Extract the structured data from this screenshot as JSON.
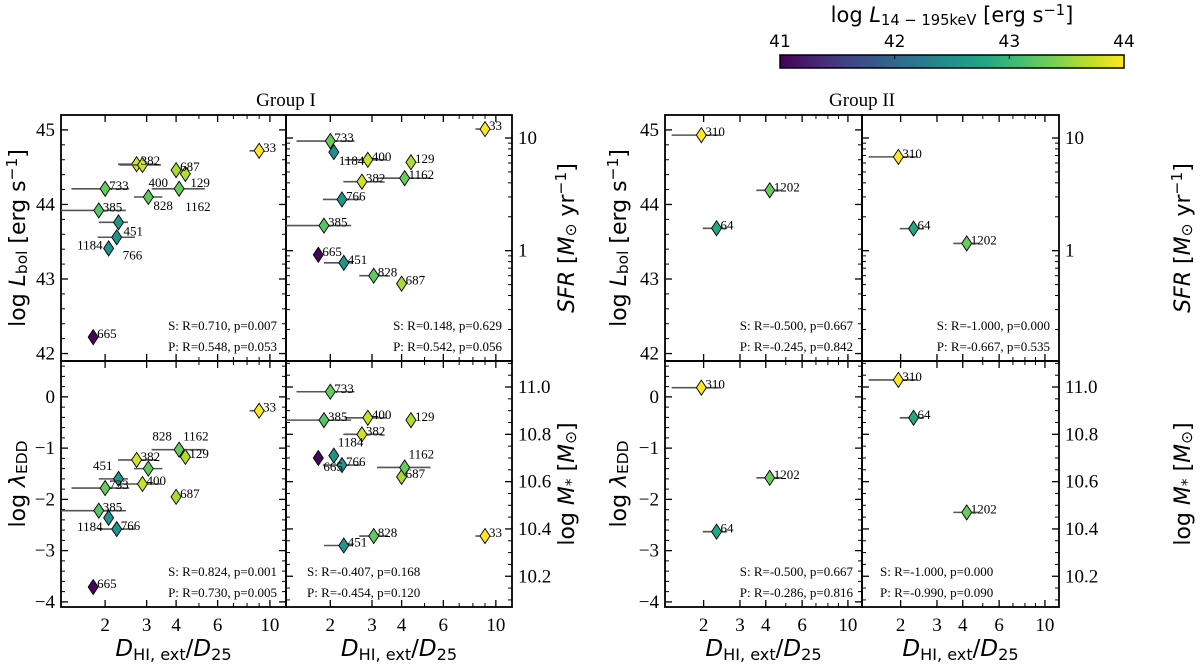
{
  "chart_data": {
    "type": "scatter",
    "marker": "diamond",
    "x_axis": {
      "scale": "log",
      "lim": [
        1.3,
        11.7
      ],
      "ticks": [
        2,
        3,
        4,
        6,
        10
      ],
      "tick_labels": [
        "2",
        "3",
        "4",
        "6",
        "10"
      ],
      "label_parts": [
        {
          "t": "D",
          "s": "it"
        },
        {
          "t": "HI, ext",
          "s": "sub"
        },
        {
          "t": "/",
          "s": ""
        },
        {
          "t": "D",
          "s": "it"
        },
        {
          "t": "25",
          "s": "sub"
        }
      ]
    },
    "y_axes": {
      "lbol": {
        "scale": "linear",
        "lim": [
          41.9,
          45.2
        ],
        "ticks": [
          42,
          43,
          44,
          45
        ],
        "tick_labels": [
          "42",
          "43",
          "44",
          "45"
        ],
        "minor_step": 0.2,
        "label_parts": [
          {
            "t": "log ",
            "s": ""
          },
          {
            "t": "L",
            "s": "it"
          },
          {
            "t": "bol",
            "s": "sub"
          },
          {
            "t": " [erg s",
            "s": ""
          },
          {
            "t": "−1",
            "s": "sup"
          },
          {
            "t": "]",
            "s": ""
          }
        ]
      },
      "sfr": {
        "scale": "log",
        "lim": [
          0.105,
          16
        ],
        "ticks": [
          1,
          10
        ],
        "tick_labels": [
          "1",
          "10"
        ],
        "label_parts": [
          {
            "t": "SFR",
            "s": "it"
          },
          {
            "t": " [",
            "s": ""
          },
          {
            "t": "M",
            "s": "it"
          },
          {
            "t": "⊙",
            "s": "sub"
          },
          {
            "t": " yr",
            "s": ""
          },
          {
            "t": "−1",
            "s": "sup"
          },
          {
            "t": "]",
            "s": ""
          }
        ]
      },
      "lambda": {
        "scale": "linear",
        "lim": [
          -4.1,
          0.7
        ],
        "ticks": [
          0,
          -1,
          -2,
          -3,
          -4
        ],
        "tick_labels": [
          "0",
          "−1",
          "−2",
          "−3",
          "−4"
        ],
        "minor_step": 0.2,
        "label_parts": [
          {
            "t": "log ",
            "s": ""
          },
          {
            "t": "λ",
            "s": "it"
          },
          {
            "t": "EDD",
            "s": "sub"
          }
        ]
      },
      "mstar": {
        "scale": "linear",
        "lim": [
          10.07,
          11.11
        ],
        "ticks": [
          10.2,
          10.4,
          10.6,
          10.8,
          11.0
        ],
        "tick_labels": [
          "10.2",
          "10.4",
          "10.6",
          "10.8",
          "11.0"
        ],
        "minor_step": 0.05,
        "label_parts": [
          {
            "t": "log ",
            "s": ""
          },
          {
            "t": "M",
            "s": "it"
          },
          {
            "t": "*",
            "s": "sub"
          },
          {
            "t": " [",
            "s": ""
          },
          {
            "t": "M",
            "s": "it"
          },
          {
            "t": "⊙",
            "s": "sub"
          },
          {
            "t": "]",
            "s": ""
          }
        ]
      }
    },
    "colorbar": {
      "colormap": "viridis",
      "range": [
        41,
        44
      ],
      "ticks": [
        41,
        42,
        43,
        44
      ],
      "tick_labels": [
        "41",
        "42",
        "43",
        "44"
      ],
      "label_parts": [
        {
          "t": "log ",
          "s": ""
        },
        {
          "t": "L",
          "s": "it"
        },
        {
          "t": "14 − 195keV",
          "s": "sub"
        },
        {
          "t": " [erg s",
          "s": ""
        },
        {
          "t": "−1",
          "s": "sup"
        },
        {
          "t": "]",
          "s": ""
        }
      ],
      "stops": [
        "#440154",
        "#482475",
        "#414487",
        "#355f8d",
        "#2a788e",
        "#21918c",
        "#22a884",
        "#44bf70",
        "#7ad151",
        "#bddf26",
        "#fde725"
      ]
    },
    "groups": [
      {
        "title": "Group I",
        "galaxies": [
          {
            "id": "33",
            "x": 9.0,
            "xerr": [
              8.2,
              9.3
            ],
            "logL14_195": 44.0,
            "lbol": 44.72,
            "sfr": 12.0,
            "lambda": -0.27,
            "mstar": 10.37
          },
          {
            "id": "382",
            "x": 2.72,
            "xerr": [
              2.27,
              3.32
            ],
            "logL14_195": 43.8,
            "lbol": 44.54,
            "sfr": 4.1,
            "lambda": -1.23,
            "mstar": 10.8
          },
          {
            "id": "400",
            "x": 2.88,
            "xerr": [
              2.3,
              3.45
            ],
            "logL14_195": 43.75,
            "lbol": 44.53,
            "sfr": 6.4,
            "lambda": -1.7,
            "mstar": 10.87
          },
          {
            "id": "687",
            "x": 4.0,
            "xerr": [
              3.8,
              4.2
            ],
            "logL14_195": 43.6,
            "lbol": 44.46,
            "sfr": 0.51,
            "lambda": -1.95,
            "mstar": 10.62
          },
          {
            "id": "129",
            "x": 4.38,
            "xerr": [
              4.17,
              4.6
            ],
            "logL14_195": 43.65,
            "lbol": 44.41,
            "sfr": 6.1,
            "lambda": -1.17,
            "mstar": 10.86
          },
          {
            "id": "733",
            "x": 2.0,
            "xerr": [
              1.44,
              2.53
            ],
            "logL14_195": 43.3,
            "lbol": 44.21,
            "sfr": 9.4,
            "lambda": -1.78,
            "mstar": 10.98
          },
          {
            "id": "828",
            "x": 3.05,
            "xerr": [
              2.65,
              3.5
            ],
            "logL14_195": 43.25,
            "lbol": 44.1,
            "sfr": 0.6,
            "lambda": -1.4,
            "mstar": 10.37
          },
          {
            "id": "1162",
            "x": 4.12,
            "xerr": [
              3.15,
              5.3
            ],
            "logL14_195": 43.3,
            "lbol": 44.21,
            "sfr": 4.4,
            "lambda": -1.03,
            "mstar": 10.66
          },
          {
            "id": "385",
            "x": 1.88,
            "xerr": [
              1.2,
              2.45
            ],
            "logL14_195": 43.2,
            "lbol": 43.92,
            "sfr": 1.67,
            "lambda": -2.22,
            "mstar": 10.86
          },
          {
            "id": "451",
            "x": 2.28,
            "xerr": [
              1.88,
              2.5
            ],
            "logL14_195": 42.55,
            "lbol": 43.76,
            "sfr": 0.78,
            "lambda": -1.6,
            "mstar": 10.33
          },
          {
            "id": "766",
            "x": 2.24,
            "xerr": [
              1.86,
              2.68
            ],
            "logL14_195": 42.55,
            "lbol": 43.56,
            "sfr": 2.85,
            "lambda": -2.58,
            "mstar": 10.67
          },
          {
            "id": "1184",
            "x": 2.07,
            "xerr": [
              1.97,
              2.17
            ],
            "logL14_195": 42.5,
            "lbol": 43.41,
            "sfr": 7.5,
            "lambda": -2.36,
            "mstar": 10.71
          },
          {
            "id": "665",
            "x": 1.78,
            "xerr": null,
            "logL14_195": 41.05,
            "lbol": 42.22,
            "sfr": 0.92,
            "lambda": -3.71,
            "mstar": 10.7
          }
        ],
        "panels": [
          {
            "var": "lbol",
            "stats": [
              "S: R=0.710, p=0.007",
              "P: R=0.548, p=0.053"
            ]
          },
          {
            "var": "sfr",
            "stats": [
              "S: R=0.148, p=0.629",
              "P: R=0.542, p=0.056"
            ]
          },
          {
            "var": "lambda",
            "stats": [
              "S: R=0.824, p=0.001",
              "P: R=0.730, p=0.005"
            ]
          },
          {
            "var": "mstar",
            "stats": [
              "S: R=-0.407, p=0.168",
              "P: R=-0.454, p=0.120"
            ]
          }
        ]
      },
      {
        "title": "Group II",
        "galaxies": [
          {
            "id": "310",
            "x": 1.95,
            "xerr": [
              1.4,
              2.42
            ],
            "logL14_195": 44.0,
            "lbol": 44.93,
            "sfr": 6.8,
            "lambda": 0.18,
            "mstar": 11.03
          },
          {
            "id": "64",
            "x": 2.31,
            "xerr": [
              1.98,
              2.6
            ],
            "logL14_195": 42.8,
            "lbol": 43.68,
            "sfr": 1.57,
            "lambda": -2.63,
            "mstar": 10.87
          },
          {
            "id": "1202",
            "x": 4.18,
            "xerr": [
              3.6,
              4.8
            ],
            "logL14_195": 43.3,
            "lbol": 44.19,
            "sfr": 1.16,
            "lambda": -1.58,
            "mstar": 10.47
          }
        ],
        "panels": [
          {
            "var": "lbol",
            "stats": [
              "S: R=-0.500, p=0.667",
              "P: R=-0.245, p=0.842"
            ]
          },
          {
            "var": "sfr",
            "stats": [
              "S: R=-1.000, p=0.000",
              "P: R=-0.667, p=0.535"
            ]
          },
          {
            "var": "lambda",
            "stats": [
              "S: R=-0.500, p=0.667",
              "P: R=-0.286, p=0.816"
            ]
          },
          {
            "var": "mstar",
            "stats": [
              "S: R=-1.000, p=0.000",
              "P: R=-0.990, p=0.090"
            ]
          }
        ]
      }
    ]
  }
}
